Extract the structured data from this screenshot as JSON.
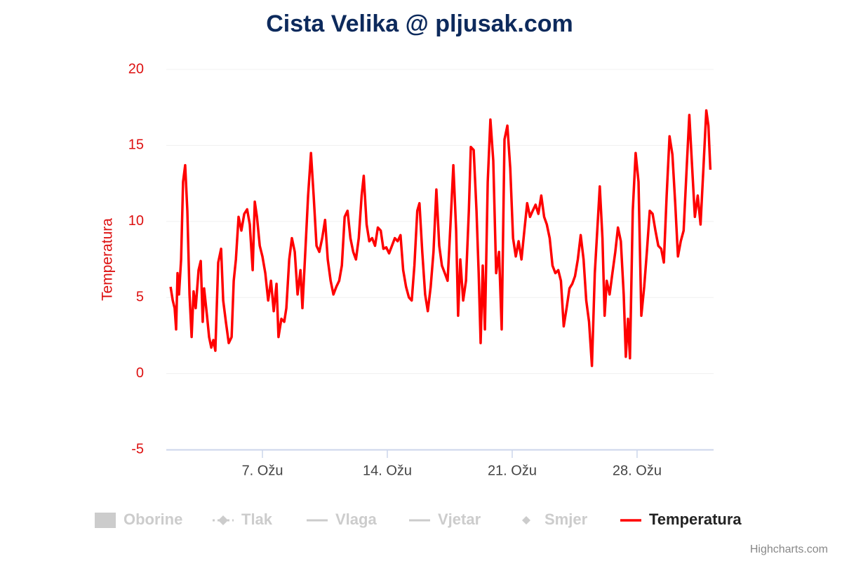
{
  "chart_data": {
    "type": "line",
    "title": "Cista Velika @ pljusak.com",
    "y_label": "Temperatura",
    "credits": "Highcharts.com",
    "xlim": [
      1.61,
      32.29
    ],
    "xticks": [
      {
        "value": 7,
        "label": "7. Ožu"
      },
      {
        "value": 14,
        "label": "14. Ožu"
      },
      {
        "value": 21,
        "label": "21. Ožu"
      },
      {
        "value": 28,
        "label": "28. Ožu"
      }
    ],
    "ylim": [
      -5,
      20
    ],
    "yticks": [
      -5,
      0,
      5,
      10,
      15,
      20
    ],
    "grid": true,
    "legend": "bottom",
    "legend_hidden": [
      {
        "name": "Oborine",
        "symbol": "rect"
      },
      {
        "name": "Tlak",
        "symbol": "dashed-diamond"
      },
      {
        "name": "Vlaga",
        "symbol": "line"
      },
      {
        "name": "Vjetar",
        "symbol": "line"
      },
      {
        "name": "Smjer",
        "symbol": "diamond"
      }
    ],
    "hidden_color": "#cccccc",
    "x": [
      1.85,
      1.97,
      2.08,
      2.16,
      2.24,
      2.32,
      2.44,
      2.55,
      2.67,
      2.79,
      2.91,
      3.03,
      3.14,
      3.26,
      3.42,
      3.54,
      3.65,
      3.73,
      3.89,
      4.01,
      4.13,
      4.25,
      4.36,
      4.52,
      4.68,
      4.8,
      4.95,
      5.11,
      5.27,
      5.39,
      5.51,
      5.66,
      5.82,
      5.98,
      6.14,
      6.29,
      6.45,
      6.57,
      6.69,
      6.85,
      7.0,
      7.16,
      7.32,
      7.48,
      7.63,
      7.79,
      7.9,
      8.06,
      8.22,
      8.34,
      8.5,
      8.65,
      8.81,
      8.97,
      9.13,
      9.24,
      9.4,
      9.56,
      9.72,
      9.87,
      10.03,
      10.19,
      10.35,
      10.51,
      10.66,
      10.82,
      10.98,
      11.14,
      11.3,
      11.45,
      11.61,
      11.77,
      11.93,
      12.09,
      12.24,
      12.4,
      12.56,
      12.68,
      12.84,
      12.99,
      13.15,
      13.31,
      13.47,
      13.63,
      13.78,
      13.94,
      14.1,
      14.26,
      14.42,
      14.58,
      14.74,
      14.89,
      15.05,
      15.21,
      15.37,
      15.52,
      15.68,
      15.8,
      15.96,
      16.12,
      16.27,
      16.43,
      16.59,
      16.75,
      16.91,
      17.06,
      17.22,
      17.38,
      17.54,
      17.7,
      17.86,
      17.97,
      18.09,
      18.25,
      18.41,
      18.57,
      18.68,
      18.84,
      19.0,
      19.12,
      19.23,
      19.35,
      19.47,
      19.63,
      19.78,
      19.94,
      20.1,
      20.26,
      20.41,
      20.57,
      20.73,
      20.89,
      21.05,
      21.2,
      21.36,
      21.52,
      21.68,
      21.84,
      22.0,
      22.15,
      22.31,
      22.47,
      22.63,
      22.79,
      22.94,
      23.1,
      23.26,
      23.42,
      23.58,
      23.73,
      23.89,
      24.05,
      24.21,
      24.37,
      24.52,
      24.68,
      24.84,
      25.0,
      25.15,
      25.31,
      25.47,
      25.63,
      25.79,
      25.91,
      26.06,
      26.18,
      26.3,
      26.46,
      26.62,
      26.78,
      26.93,
      27.09,
      27.25,
      27.37,
      27.49,
      27.6,
      27.76,
      27.92,
      28.08,
      28.24,
      28.4,
      28.55,
      28.71,
      28.87,
      29.03,
      29.19,
      29.35,
      29.5,
      29.66,
      29.82,
      29.98,
      30.14,
      30.29,
      30.45,
      30.61,
      30.77,
      30.93,
      31.09,
      31.24,
      31.4,
      31.56,
      31.72,
      31.88,
      32.0,
      32.11
    ],
    "series": [
      {
        "name": "Temperatura",
        "color": "#ff0000",
        "values": [
          5.7,
          4.8,
          4.3,
          2.9,
          6.6,
          5.2,
          7.5,
          12.6,
          13.7,
          10.7,
          5.2,
          2.4,
          5.4,
          4.3,
          6.8,
          7.4,
          3.4,
          5.6,
          3.8,
          2.4,
          1.7,
          2.2,
          1.5,
          7.3,
          8.2,
          4.8,
          3.4,
          2.0,
          2.4,
          6.1,
          7.5,
          10.3,
          9.4,
          10.5,
          10.8,
          9.8,
          6.8,
          11.3,
          10.3,
          8.4,
          7.7,
          6.6,
          4.8,
          6.1,
          4.1,
          5.9,
          2.4,
          3.6,
          3.4,
          4.3,
          7.5,
          8.9,
          8.0,
          5.2,
          6.8,
          4.3,
          8.0,
          11.7,
          14.5,
          11.7,
          8.4,
          8.0,
          8.9,
          10.1,
          7.5,
          6.1,
          5.2,
          5.7,
          6.1,
          7.1,
          10.3,
          10.7,
          8.9,
          8.0,
          7.5,
          8.9,
          11.7,
          13.0,
          9.8,
          8.7,
          8.9,
          8.4,
          9.6,
          9.4,
          8.2,
          8.3,
          7.9,
          8.4,
          8.9,
          8.7,
          9.1,
          6.8,
          5.7,
          5.0,
          4.8,
          7.1,
          10.7,
          11.2,
          8.0,
          5.2,
          4.1,
          5.7,
          8.0,
          12.1,
          8.4,
          7.1,
          6.6,
          6.1,
          9.8,
          13.7,
          9.4,
          3.8,
          7.5,
          4.8,
          6.1,
          10.7,
          14.9,
          14.7,
          10.7,
          6.6,
          2.0,
          7.1,
          2.9,
          12.6,
          16.7,
          14.0,
          6.6,
          8.0,
          2.9,
          15.4,
          16.3,
          13.5,
          8.9,
          7.7,
          8.7,
          7.5,
          9.4,
          11.2,
          10.3,
          10.7,
          11.1,
          10.5,
          11.7,
          10.3,
          9.8,
          8.9,
          7.1,
          6.6,
          6.8,
          6.1,
          3.1,
          4.3,
          5.6,
          5.9,
          6.4,
          7.5,
          9.1,
          7.5,
          4.8,
          3.4,
          0.5,
          6.6,
          9.8,
          12.3,
          8.9,
          3.8,
          6.1,
          5.2,
          6.6,
          8.0,
          9.6,
          8.7,
          5.2,
          1.1,
          3.6,
          1.0,
          10.7,
          14.5,
          12.6,
          3.8,
          5.7,
          8.0,
          10.7,
          10.5,
          9.4,
          8.4,
          8.2,
          7.3,
          11.7,
          15.6,
          14.4,
          11.2,
          7.7,
          8.7,
          9.4,
          13.3,
          17.0,
          13.5,
          10.3,
          11.7,
          9.8,
          13.5,
          17.3,
          16.3,
          13.4
        ]
      }
    ]
  }
}
